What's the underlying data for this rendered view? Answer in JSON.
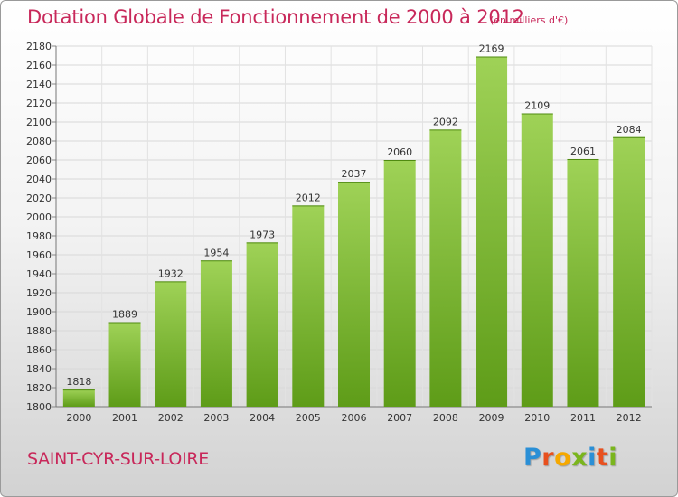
{
  "chart_data": {
    "type": "bar",
    "title": "Dotation Globale de Fonctionnement de 2000 à 2012",
    "subtitle": "(en milliers d'€)",
    "categories": [
      "2000",
      "2001",
      "2002",
      "2003",
      "2004",
      "2005",
      "2006",
      "2007",
      "2008",
      "2009",
      "2010",
      "2011",
      "2012"
    ],
    "values": [
      1818,
      1889,
      1932,
      1954,
      1973,
      2012,
      2037,
      2060,
      2092,
      2169,
      2109,
      2061,
      2084
    ],
    "ylim": [
      1800,
      2180
    ],
    "yticks": [
      1800,
      1820,
      1840,
      1860,
      1880,
      1900,
      1920,
      1940,
      1960,
      1980,
      2000,
      2020,
      2040,
      2060,
      2080,
      2100,
      2120,
      2140,
      2160,
      2180
    ],
    "xlabel": "",
    "ylabel": "",
    "grid": true
  },
  "footer": {
    "city": "SAINT-CYR-SUR-LOIRE",
    "logo_text": "Proxiti"
  },
  "colors": {
    "title": "#c8285a",
    "bar_light": "#9fd257",
    "bar_dark": "#5e9c18",
    "logo": [
      "#2a8fd6",
      "#e8501e",
      "#f5a800",
      "#7ab51d",
      "#2a8fd6",
      "#e8501e",
      "#7ab51d"
    ]
  }
}
